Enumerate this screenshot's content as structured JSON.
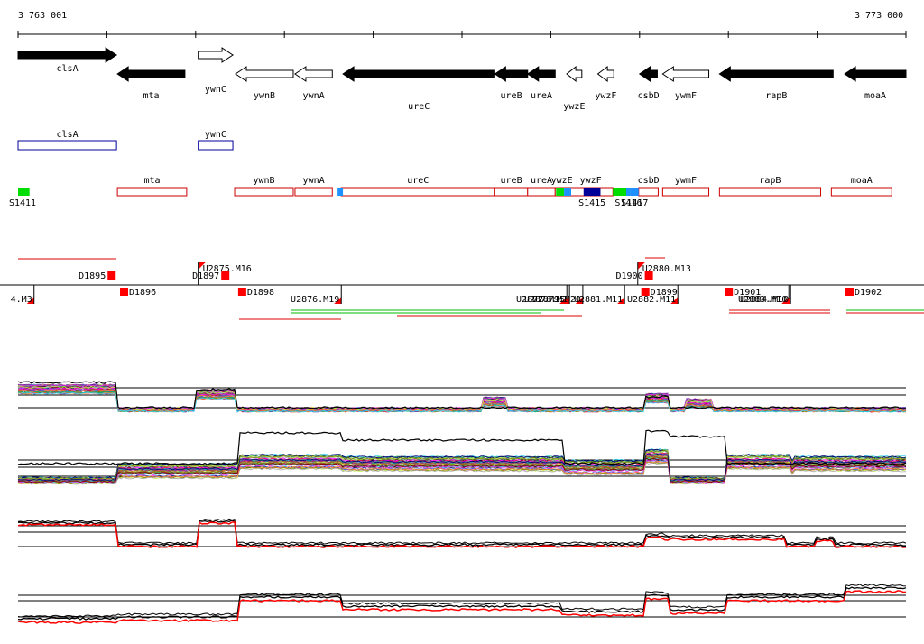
{
  "ruler": {
    "start_label": "3 763 001",
    "end_label": "3 773 000",
    "start": 3763001,
    "end": 3773000
  },
  "genes": [
    {
      "name": "clsA",
      "strand": "+",
      "filled": true,
      "start": 3763001,
      "end": 3764110,
      "row": "top"
    },
    {
      "name": "mta",
      "strand": "-",
      "filled": true,
      "start": 3764120,
      "end": 3764880,
      "row": "bottom"
    },
    {
      "name": "ywnC",
      "strand": "+",
      "filled": false,
      "start": 3765030,
      "end": 3765420,
      "row": "top"
    },
    {
      "name": "ywnB",
      "strand": "-",
      "filled": false,
      "start": 3765450,
      "end": 3766100,
      "row": "bottom"
    },
    {
      "name": "ywnA",
      "strand": "-",
      "filled": false,
      "start": 3766120,
      "end": 3766540,
      "row": "bottom"
    },
    {
      "name": "ureC",
      "strand": "-",
      "filled": true,
      "start": 3766660,
      "end": 3768370,
      "row": "bottom"
    },
    {
      "name": "ureB",
      "strand": "-",
      "filled": true,
      "start": 3768370,
      "end": 3768740,
      "row": "bottom"
    },
    {
      "name": "ureA",
      "strand": "-",
      "filled": true,
      "start": 3768740,
      "end": 3769050,
      "row": "bottom"
    },
    {
      "name": "ywzE",
      "strand": "-",
      "filled": false,
      "start": 3769180,
      "end": 3769350,
      "row": "bottom"
    },
    {
      "name": "ywzF",
      "strand": "-",
      "filled": false,
      "start": 3769530,
      "end": 3769710,
      "row": "bottom"
    },
    {
      "name": "csbD",
      "strand": "-",
      "filled": true,
      "start": 3770000,
      "end": 3770200,
      "row": "bottom"
    },
    {
      "name": "ywmF",
      "strand": "-",
      "filled": false,
      "start": 3770260,
      "end": 3770780,
      "row": "bottom"
    },
    {
      "name": "rapB",
      "strand": "-",
      "filled": true,
      "start": 3770900,
      "end": 3772180,
      "row": "bottom"
    },
    {
      "name": "moaA",
      "strand": "-",
      "filled": true,
      "start": 3772310,
      "end": 3773000,
      "row": "bottom"
    }
  ],
  "plus_boxes": [
    {
      "name": "clsA",
      "start": 3763001,
      "end": 3764110
    },
    {
      "name": "ywnC",
      "start": 3765030,
      "end": 3765420
    }
  ],
  "minus_boxes": [
    {
      "name": "mta",
      "start": 3764120,
      "end": 3764900
    },
    {
      "name": "ywnB",
      "start": 3765440,
      "end": 3766100
    },
    {
      "name": "ywnA",
      "start": 3766120,
      "end": 3766540
    },
    {
      "name": "ureC",
      "start": 3766640,
      "end": 3768370
    },
    {
      "name": "ureB",
      "start": 3768370,
      "end": 3768740
    },
    {
      "name": "ureA",
      "start": 3768740,
      "end": 3769050
    },
    {
      "name": "ywzE",
      "start": 3769050,
      "end": 3769200
    },
    {
      "name": "ywzF",
      "start": 3769200,
      "end": 3769700
    },
    {
      "name": "csbD",
      "start": 3769990,
      "end": 3770210
    },
    {
      "name": "ywmF",
      "start": 3770260,
      "end": 3770780
    },
    {
      "name": "rapB",
      "start": 3770900,
      "end": 3772040
    },
    {
      "name": "moaA",
      "start": 3772160,
      "end": 3772840
    }
  ],
  "segments": [
    {
      "name": "S1411",
      "start": 3763001,
      "end": 3763130,
      "color": "#00dd00"
    },
    {
      "name": "",
      "start": 3766600,
      "end": 3766660,
      "color": "#1e90ff"
    },
    {
      "name": "",
      "start": 3769060,
      "end": 3769150,
      "color": "#00dd00"
    },
    {
      "name": "",
      "start": 3769150,
      "end": 3769230,
      "color": "#1e90ff"
    },
    {
      "name": "S1415",
      "start": 3769370,
      "end": 3769560,
      "color": "#000099"
    },
    {
      "name": "",
      "start": 3769700,
      "end": 3769850,
      "color": "#00dd00"
    },
    {
      "name": "S1416",
      "start": 3769850,
      "end": 3769900,
      "color": "#1e90ff"
    },
    {
      "name": "S1417",
      "start": 3769900,
      "end": 3769990,
      "color": "#1e90ff"
    }
  ],
  "features_top": [
    {
      "name": "D1895",
      "pos": 3764050
    },
    {
      "name": "D1897",
      "pos": 3765330
    },
    {
      "name": "U2875.M16",
      "pos": 3765050
    },
    {
      "name": "D1900",
      "pos": 3770100
    },
    {
      "name": "U2880.M13",
      "pos": 3770000
    }
  ],
  "features_bottom": [
    {
      "name": "4.M3",
      "pos": 3763100
    },
    {
      "name": "D1896",
      "pos": 3764190
    },
    {
      "name": "D1898",
      "pos": 3765520
    },
    {
      "name": "U2876.M19",
      "pos": 3766560
    },
    {
      "name": "U2877.M15",
      "pos": 3769100
    },
    {
      "name": "U2878.M1",
      "pos": 3769130
    },
    {
      "name": "U2879.M20",
      "pos": 3769280
    },
    {
      "name": "U2881.M11",
      "pos": 3769750
    },
    {
      "name": "D1899",
      "pos": 3770060
    },
    {
      "name": "U2882.M11",
      "pos": 3770350
    },
    {
      "name": "D1901",
      "pos": 3771000
    },
    {
      "name": "U2883.M10",
      "pos": 3771600
    },
    {
      "name": "U2884.M10",
      "pos": 3771620
    },
    {
      "name": "D1902",
      "pos": 3772360
    }
  ],
  "colors": {
    "gene_fill": "#000000",
    "box_plus": "#000099",
    "box_minus": "#cc0000",
    "feature": "#ff0000",
    "track_black": "#000000",
    "track_red": "#ff0000",
    "long_green": "#00bb00",
    "long_red": "#dd0000"
  }
}
